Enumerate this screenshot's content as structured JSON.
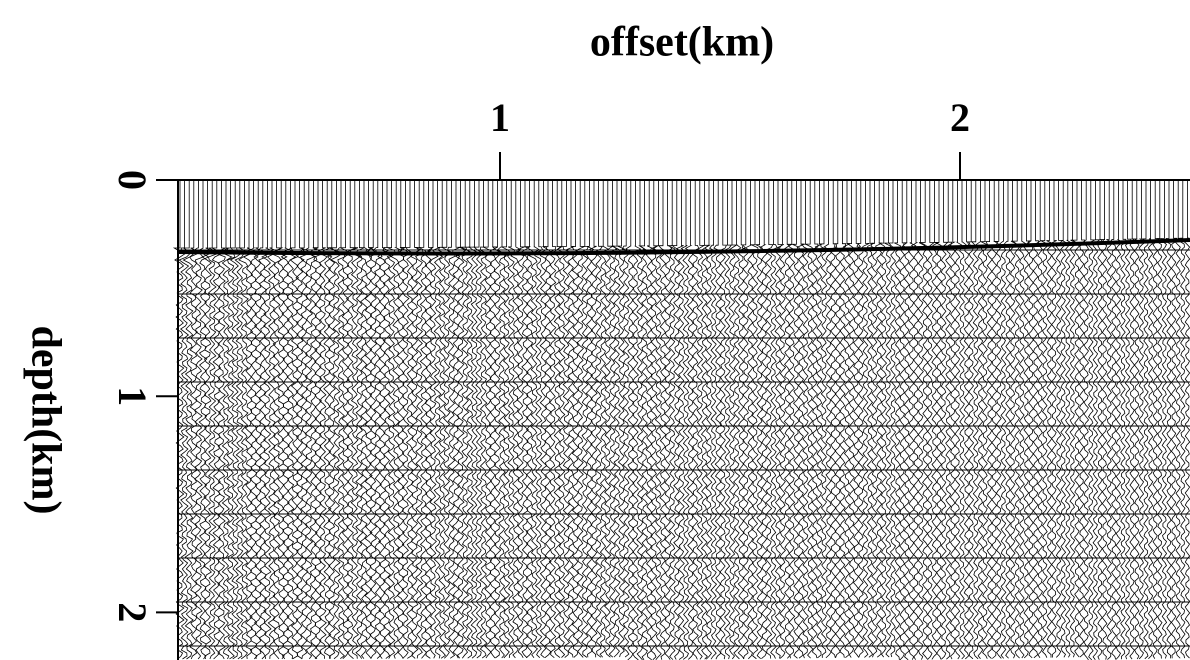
{
  "chart_data": {
    "type": "wiggle",
    "xlabel": "offset(km)",
    "ylabel": "depth(km)",
    "xlim": [
      0.3,
      2.5
    ],
    "xticks": [
      1,
      2
    ],
    "ylim": [
      0,
      2.22
    ],
    "yticks": [
      0,
      1,
      2
    ],
    "color": "#000000"
  }
}
